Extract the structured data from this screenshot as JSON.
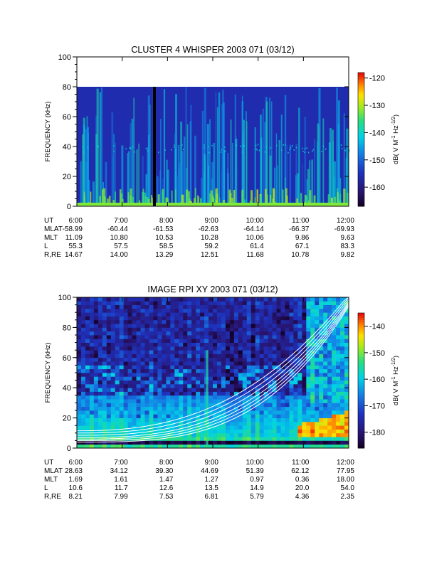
{
  "chart_data": [
    {
      "type": "heatmap",
      "title": "CLUSTER 4 WHISPER 2003 071 (03/12)",
      "ylabel": "FREQUENCY (kHz)",
      "ylim": [
        0,
        100
      ],
      "yticks": [
        0,
        20,
        40,
        60,
        80,
        100
      ],
      "xlim": [
        "6:00",
        "12:00"
      ],
      "xticks": [
        "6:00",
        "7:00",
        "8:00",
        "9:00",
        "10:00",
        "11:00",
        "12:00"
      ],
      "data_ceiling_khz": 80,
      "colorbar": {
        "label_main": "dB( V M",
        "label_sup1": "-1",
        "label_mid": " Hz",
        "label_sup2": "-1/2",
        "label_end": ")",
        "range": [
          -167,
          -118
        ],
        "ticks": [
          -120,
          -130,
          -140,
          -150,
          -160
        ]
      },
      "ephemeris": {
        "labels": [
          "UT",
          "MLAT",
          "MLT",
          "L",
          "R,RE"
        ],
        "rows": [
          [
            "6:00",
            "7:00",
            "8:00",
            "9:00",
            "10:00",
            "11:00",
            "12:00"
          ],
          [
            "-58.99",
            "-60.44",
            "-61.53",
            "-62.63",
            "-64.14",
            "-66.37",
            "-69.93"
          ],
          [
            "11.09",
            "10.80",
            "10.53",
            "10.28",
            "10.06",
            "9.86",
            "9.63"
          ],
          [
            "55.3",
            "57.5",
            "58.5",
            "59.2",
            "61.4",
            "67.1",
            "83.3"
          ],
          [
            "14.67",
            "14.00",
            "13.29",
            "12.51",
            "11.68",
            "10.78",
            "9.82"
          ]
        ]
      }
    },
    {
      "type": "heatmap",
      "title": "IMAGE RPI XY 2003 071 (03/12)",
      "ylabel": "FREQUENCY (kHz)",
      "ylim": [
        0,
        100
      ],
      "yticks": [
        0,
        20,
        40,
        60,
        80,
        100
      ],
      "xlim": [
        "6:00",
        "12:00"
      ],
      "xticks": [
        "6:00",
        "7:00",
        "8:00",
        "9:00",
        "10:00",
        "11:00",
        "12:00"
      ],
      "overlay_curves": "white",
      "colorbar": {
        "label_main": "dB( V M",
        "label_sup1": "-1",
        "label_mid": " Hz",
        "label_sup2": "-1/2",
        "label_end": ")",
        "range": [
          -186,
          -135
        ],
        "ticks": [
          -140,
          -150,
          -160,
          -170,
          -180
        ]
      },
      "ephemeris": {
        "labels": [
          "UT",
          "MLAT",
          "MLT",
          "L",
          "R,RE"
        ],
        "rows": [
          [
            "6:00",
            "7:00",
            "8:00",
            "9:00",
            "10:00",
            "11:00",
            "12:00"
          ],
          [
            "28.63",
            "34.12",
            "39.30",
            "44.69",
            "51.39",
            "62.12",
            "77.95"
          ],
          [
            "1.69",
            "1.61",
            "1.47",
            "1.27",
            "0.97",
            "0.36",
            "18.00"
          ],
          [
            "10.6",
            "11.7",
            "12.6",
            "13.5",
            "14.9",
            "20.0",
            "54.0"
          ],
          [
            "8.21",
            "7.99",
            "7.53",
            "6.81",
            "5.79",
            "4.36",
            "2.35"
          ]
        ]
      }
    }
  ]
}
